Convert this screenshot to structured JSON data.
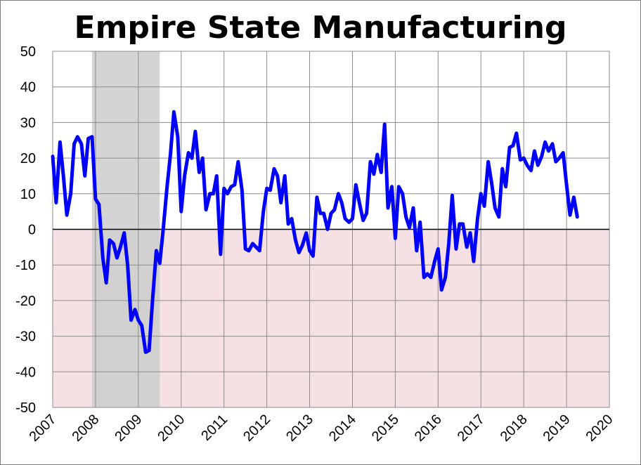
{
  "chart_data": {
    "type": "line",
    "title": "Empire State Manufacturing",
    "xlabel": "",
    "ylabel": "",
    "xlim": [
      2007,
      2020
    ],
    "ylim": [
      -50,
      50
    ],
    "y_ticks": [
      50,
      40,
      30,
      20,
      10,
      0,
      -10,
      -20,
      -30,
      -40,
      -50
    ],
    "x_ticks": [
      "2007",
      "2008",
      "2009",
      "2010",
      "2011",
      "2012",
      "2013",
      "2014",
      "2015",
      "2016",
      "2017",
      "2018",
      "2019",
      "2020"
    ],
    "grid": true,
    "legend": "none",
    "zero_line": true,
    "negative_region_color": "#f5e1e3",
    "recession_color": "#cccccc",
    "recession": [
      2007.92,
      2009.5
    ],
    "series": [
      {
        "color": "#0000ff",
        "x": [
          2007.0,
          2007.08,
          2007.17,
          2007.25,
          2007.33,
          2007.42,
          2007.5,
          2007.58,
          2007.67,
          2007.75,
          2007.83,
          2007.92,
          2008.0,
          2008.08,
          2008.17,
          2008.25,
          2008.33,
          2008.42,
          2008.5,
          2008.58,
          2008.67,
          2008.75,
          2008.83,
          2008.92,
          2009.0,
          2009.08,
          2009.17,
          2009.25,
          2009.33,
          2009.42,
          2009.5,
          2009.58,
          2009.67,
          2009.75,
          2009.83,
          2009.92,
          2010.0,
          2010.08,
          2010.17,
          2010.25,
          2010.33,
          2010.42,
          2010.5,
          2010.58,
          2010.67,
          2010.75,
          2010.83,
          2010.92,
          2011.0,
          2011.08,
          2011.17,
          2011.25,
          2011.33,
          2011.42,
          2011.5,
          2011.58,
          2011.67,
          2011.75,
          2011.83,
          2011.92,
          2012.0,
          2012.08,
          2012.17,
          2012.25,
          2012.33,
          2012.42,
          2012.5,
          2012.58,
          2012.67,
          2012.75,
          2012.83,
          2012.92,
          2013.0,
          2013.08,
          2013.17,
          2013.25,
          2013.33,
          2013.42,
          2013.5,
          2013.58,
          2013.67,
          2013.75,
          2013.83,
          2013.92,
          2014.0,
          2014.08,
          2014.17,
          2014.25,
          2014.33,
          2014.42,
          2014.5,
          2014.58,
          2014.67,
          2014.75,
          2014.83,
          2014.92,
          2015.0,
          2015.08,
          2015.17,
          2015.25,
          2015.33,
          2015.42,
          2015.5,
          2015.58,
          2015.67,
          2015.75,
          2015.83,
          2015.92,
          2016.0,
          2016.08,
          2016.17,
          2016.25,
          2016.33,
          2016.42,
          2016.5,
          2016.58,
          2016.67,
          2016.75,
          2016.83,
          2016.92,
          2017.0,
          2017.08,
          2017.17,
          2017.25,
          2017.33,
          2017.42,
          2017.5,
          2017.58,
          2017.67,
          2017.75,
          2017.83,
          2017.92,
          2018.0,
          2018.08,
          2018.17,
          2018.25,
          2018.33,
          2018.42,
          2018.5,
          2018.58,
          2018.67,
          2018.75,
          2018.83,
          2018.92,
          2019.0,
          2019.08,
          2019.17,
          2019.25
        ],
        "values": [
          20.5,
          7.5,
          24.5,
          15,
          4,
          10,
          24,
          26,
          24,
          15,
          25.5,
          26,
          8.5,
          7,
          -8,
          -15,
          -3,
          -4,
          -8,
          -5,
          -1,
          -10,
          -25.5,
          -22.5,
          -25.5,
          -27,
          -34.5,
          -34,
          -20,
          -6,
          -9.5,
          0,
          12,
          21,
          33,
          26,
          5,
          15,
          21.5,
          20,
          27.5,
          16,
          20,
          5.5,
          10,
          10,
          15,
          -7,
          11.5,
          10,
          12,
          12.5,
          19,
          11,
          -5.5,
          -6,
          -4,
          -5,
          -6,
          5,
          11.5,
          11,
          17,
          15,
          7.5,
          15,
          1.5,
          3,
          -3,
          -6.5,
          -4.5,
          -1,
          -6,
          -7.5,
          9,
          4.5,
          4.5,
          0,
          4.5,
          5.5,
          10,
          7.5,
          3,
          2,
          3,
          12.5,
          7,
          2.5,
          4.5,
          19,
          15.5,
          21,
          16,
          29.5,
          6,
          12,
          -2.5,
          12,
          10,
          3.5,
          0.5,
          6,
          -6,
          2,
          -13.5,
          -12.5,
          -13.5,
          -9,
          -5.5,
          -17,
          -13.5,
          -4,
          9.5,
          -5.5,
          1.5,
          1.5,
          -5,
          -1,
          -9,
          3,
          10,
          6.5,
          19,
          13,
          6,
          3.5,
          17,
          12,
          23,
          23.5,
          27,
          19.5,
          20,
          18,
          16.5,
          22,
          18,
          20.5,
          24.5,
          22,
          24,
          19,
          20,
          21.5,
          12.5,
          4,
          9,
          3.5
        ]
      }
    ]
  }
}
